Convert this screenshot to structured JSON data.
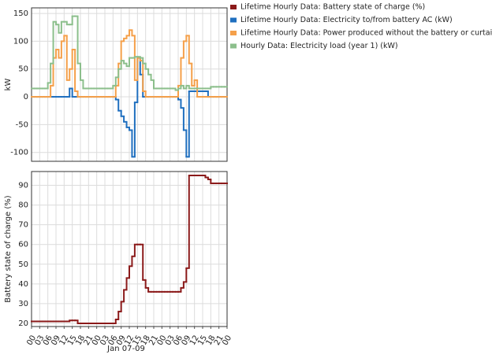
{
  "chart_data": [
    {
      "type": "line",
      "ylabel": "kW",
      "x": [
        0,
        1,
        2,
        3,
        4,
        5,
        6,
        7,
        8,
        9,
        10,
        11,
        12,
        13,
        14,
        15,
        16,
        17,
        18,
        19,
        20,
        21,
        22,
        23,
        24,
        25,
        26,
        27,
        28,
        29,
        30,
        31,
        32,
        33,
        34,
        35,
        36,
        37,
        38,
        39,
        40,
        41,
        42,
        43,
        44,
        45,
        46,
        47,
        48,
        49,
        50,
        51,
        52,
        53,
        54,
        55,
        56,
        57,
        58,
        59,
        60,
        61,
        62,
        63,
        64,
        65,
        66,
        67,
        68,
        69,
        70,
        71
      ],
      "xlim": [
        0,
        72
      ],
      "ylim": [
        -116,
        160
      ],
      "yticks": [
        -100,
        -50,
        0,
        50,
        100,
        150
      ],
      "grid": true,
      "series": [
        {
          "name": "Lifetime Hourly Data: Electricity to/from battery AC (kW)",
          "color": "#1f6fbf",
          "values": [
            0,
            0,
            0,
            0,
            0,
            0,
            0,
            0,
            0,
            0,
            0,
            0,
            0,
            0,
            15,
            0,
            0,
            0,
            0,
            0,
            0,
            0,
            0,
            0,
            0,
            0,
            0,
            0,
            0,
            0,
            0,
            -5,
            -25,
            -35,
            -45,
            -55,
            -60,
            -108,
            -10,
            70,
            40,
            0,
            0,
            0,
            0,
            0,
            0,
            0,
            0,
            0,
            0,
            0,
            0,
            0,
            -5,
            -20,
            -60,
            -108,
            10,
            10,
            10,
            10,
            10,
            10,
            10,
            0,
            0,
            0,
            0,
            0,
            0,
            0
          ]
        },
        {
          "name": "Lifetime Hourly Data: Power produced without the battery or curtailment (kW)",
          "color": "#f5a04a",
          "values": [
            0,
            0,
            0,
            0,
            0,
            0,
            0,
            20,
            70,
            85,
            70,
            100,
            110,
            30,
            50,
            85,
            10,
            0,
            0,
            0,
            0,
            0,
            0,
            0,
            0,
            0,
            0,
            0,
            0,
            0,
            0,
            20,
            60,
            100,
            105,
            110,
            120,
            110,
            30,
            70,
            65,
            10,
            0,
            0,
            0,
            0,
            0,
            0,
            0,
            0,
            0,
            0,
            0,
            0,
            20,
            70,
            100,
            110,
            60,
            20,
            30,
            0,
            0,
            0,
            0,
            0,
            0,
            0,
            0,
            0,
            0,
            0
          ]
        },
        {
          "name": "Hourly Data: Electricity load (year 1) (kW)",
          "color": "#8cbf8c",
          "values": [
            15,
            15,
            15,
            15,
            15,
            15,
            25,
            60,
            135,
            130,
            115,
            135,
            135,
            130,
            130,
            145,
            145,
            60,
            30,
            15,
            15,
            15,
            15,
            15,
            15,
            15,
            15,
            15,
            15,
            15,
            20,
            35,
            50,
            65,
            60,
            55,
            70,
            70,
            72,
            72,
            70,
            60,
            50,
            40,
            30,
            15,
            15,
            15,
            15,
            15,
            15,
            15,
            15,
            12,
            15,
            20,
            15,
            20,
            15,
            15,
            15,
            15,
            15,
            15,
            15,
            15,
            18,
            18,
            18,
            18,
            18,
            18
          ]
        }
      ]
    },
    {
      "type": "line",
      "ylabel": "Battery state of charge (%)",
      "xlabel": "Jan 07-09",
      "x": [
        0,
        1,
        2,
        3,
        4,
        5,
        6,
        7,
        8,
        9,
        10,
        11,
        12,
        13,
        14,
        15,
        16,
        17,
        18,
        19,
        20,
        21,
        22,
        23,
        24,
        25,
        26,
        27,
        28,
        29,
        30,
        31,
        32,
        33,
        34,
        35,
        36,
        37,
        38,
        39,
        40,
        41,
        42,
        43,
        44,
        45,
        46,
        47,
        48,
        49,
        50,
        51,
        52,
        53,
        54,
        55,
        56,
        57,
        58,
        59,
        60,
        61,
        62,
        63,
        64,
        65,
        66,
        67,
        68,
        69,
        70,
        71
      ],
      "xlim": [
        0,
        72
      ],
      "xticks": [
        {
          "value": 0,
          "label": "00"
        },
        {
          "value": 3,
          "label": "03"
        },
        {
          "value": 6,
          "label": "06"
        },
        {
          "value": 9,
          "label": "09"
        },
        {
          "value": 12,
          "label": "12"
        },
        {
          "value": 15,
          "label": "15"
        },
        {
          "value": 18,
          "label": "18"
        },
        {
          "value": 21,
          "label": "21"
        },
        {
          "value": 24,
          "label": "00"
        },
        {
          "value": 27,
          "label": "03"
        },
        {
          "value": 30,
          "label": "06"
        },
        {
          "value": 33,
          "label": "09"
        },
        {
          "value": 36,
          "label": "12"
        },
        {
          "value": 39,
          "label": "15"
        },
        {
          "value": 42,
          "label": "18"
        },
        {
          "value": 45,
          "label": "21"
        },
        {
          "value": 48,
          "label": "00"
        },
        {
          "value": 51,
          "label": "03"
        },
        {
          "value": 54,
          "label": "06"
        },
        {
          "value": 57,
          "label": "09"
        },
        {
          "value": 60,
          "label": "12"
        },
        {
          "value": 63,
          "label": "15"
        },
        {
          "value": 66,
          "label": "18"
        },
        {
          "value": 69,
          "label": "21"
        },
        {
          "value": 72,
          "label": "00"
        }
      ],
      "ylim": [
        18.4,
        97
      ],
      "yticks": [
        20,
        30,
        40,
        50,
        60,
        70,
        80,
        90
      ],
      "grid": true,
      "series": [
        {
          "name": "Lifetime Hourly Data: Battery state of charge (%)",
          "color": "#8b1a1a",
          "values": [
            21,
            21,
            21,
            21,
            21,
            21,
            21,
            21,
            21,
            21,
            21,
            21,
            21,
            21,
            21.5,
            21.5,
            21.5,
            20,
            20,
            20,
            20,
            20,
            20,
            20,
            20,
            20,
            20,
            20,
            20,
            20,
            20,
            22,
            26,
            31,
            37,
            43,
            49,
            54,
            60,
            60,
            60,
            42,
            38,
            36,
            36,
            36,
            36,
            36,
            36,
            36,
            36,
            36,
            36,
            36,
            36,
            38,
            41,
            48,
            95,
            95,
            95,
            95,
            95,
            95,
            94,
            93,
            91,
            91,
            91,
            91,
            91,
            91
          ]
        }
      ]
    }
  ]
}
